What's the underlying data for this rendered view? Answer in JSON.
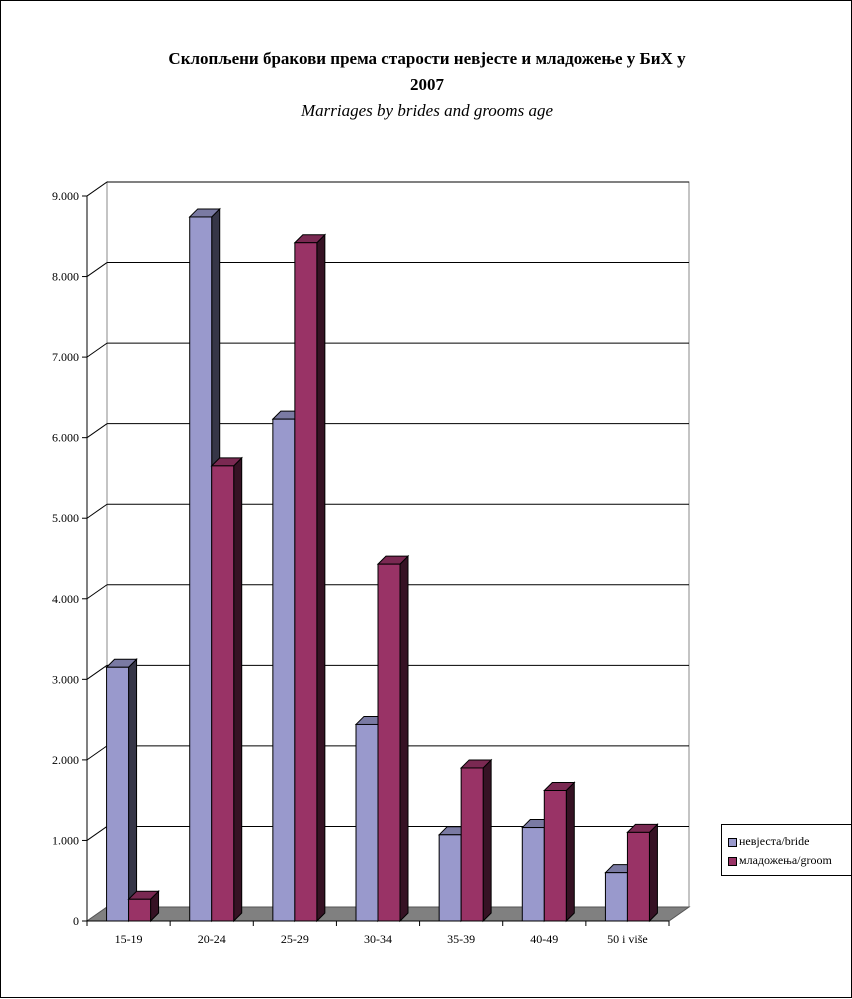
{
  "chart_data": {
    "type": "bar",
    "title_lines": [
      "Склопљени бракови према старости невјесте и младожење у БиХ у",
      "2007"
    ],
    "subtitle": "Marriages by brides and grooms age",
    "categories": [
      "15-19",
      "20-24",
      "25-29",
      "30-34",
      "35-39",
      "40-49",
      "50 i više"
    ],
    "series": [
      {
        "name": "невјеста/bride",
        "color": "#9999cc",
        "values": [
          3150,
          8740,
          6230,
          2440,
          1070,
          1160,
          600
        ]
      },
      {
        "name": "младожења/groom",
        "color": "#993366",
        "values": [
          270,
          5650,
          8420,
          4430,
          1900,
          1620,
          1100
        ]
      }
    ],
    "ylim": [
      0,
      9000
    ],
    "yticks": [
      0,
      1000,
      2000,
      3000,
      4000,
      5000,
      6000,
      7000,
      8000,
      9000
    ],
    "ytick_labels": [
      "0",
      "1.000",
      "2.000",
      "3.000",
      "4.000",
      "5.000",
      "6.000",
      "7.000",
      "8.000",
      "9.000"
    ],
    "grid": true,
    "three_d": true,
    "legend_position": "right"
  }
}
